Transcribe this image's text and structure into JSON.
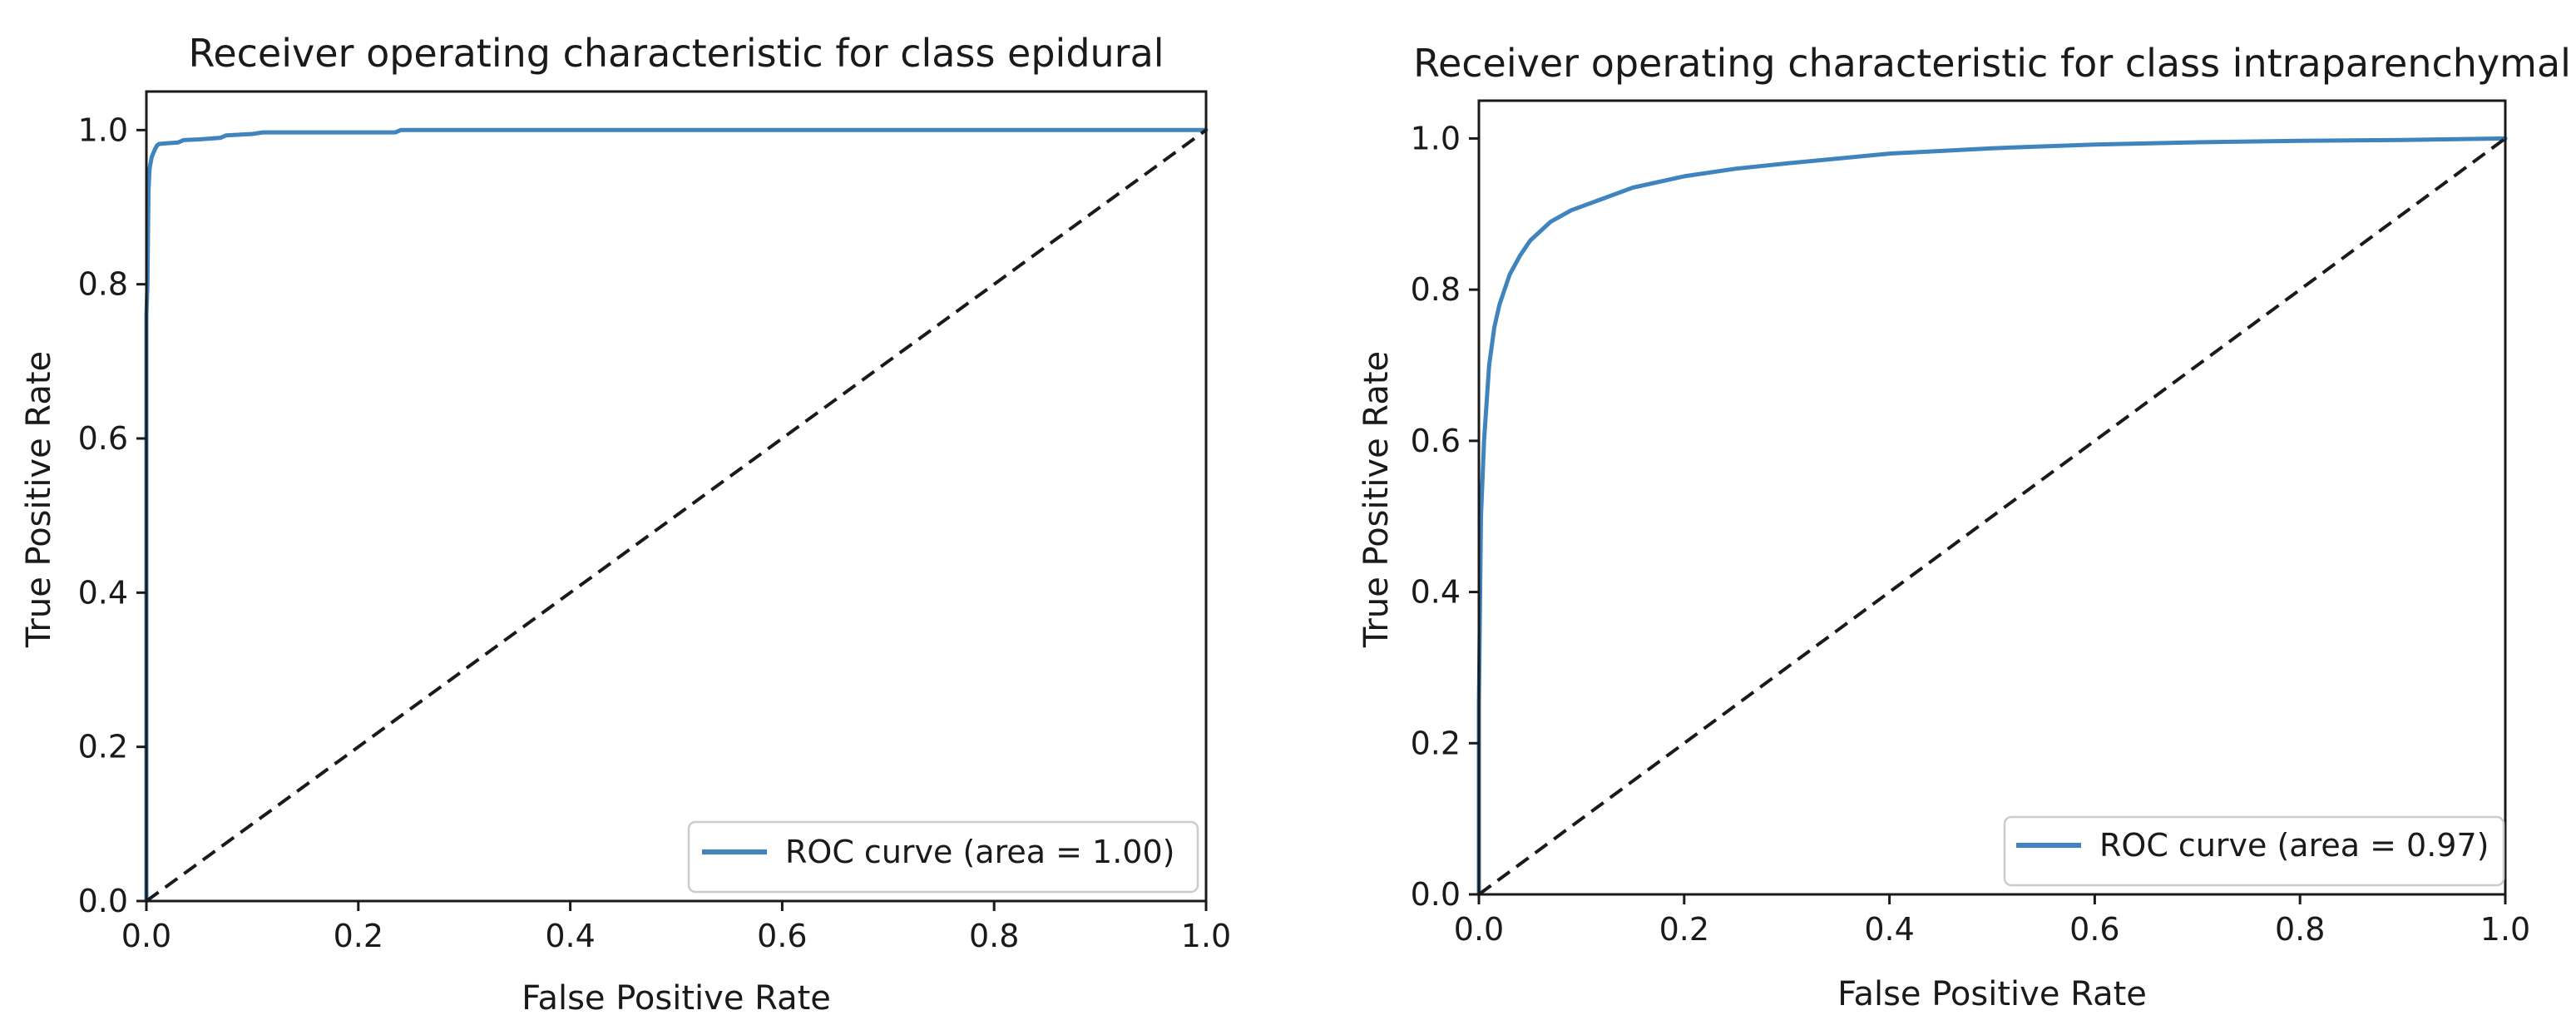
{
  "chart_data": [
    {
      "type": "line",
      "title": "Receiver operating characteristic for class epidural",
      "xlabel": "False Positive Rate",
      "ylabel": "True Positive Rate",
      "xlim": [
        0.0,
        1.0
      ],
      "ylim": [
        0.0,
        1.05
      ],
      "xticks": [
        "0.0",
        "0.2",
        "0.4",
        "0.6",
        "0.8",
        "1.0"
      ],
      "yticks": [
        "0.0",
        "0.2",
        "0.4",
        "0.6",
        "0.8",
        "1.0"
      ],
      "grid": false,
      "legend": {
        "placement": "lower-right",
        "entries": [
          "ROC curve (area = 1.00)"
        ]
      },
      "series": [
        {
          "name": "ROC curve (area = 1.00)",
          "color": "#3f84be",
          "style": "solid",
          "x": [
            0.0,
            0.0,
            0.001,
            0.002,
            0.003,
            0.005,
            0.008,
            0.01,
            0.012,
            0.02,
            0.03,
            0.035,
            0.05,
            0.07,
            0.075,
            0.1,
            0.11,
            0.15,
            0.2,
            0.235,
            0.24,
            0.3,
            0.5,
            0.8,
            1.0
          ],
          "y": [
            0.0,
            0.76,
            0.8,
            0.92,
            0.95,
            0.965,
            0.975,
            0.98,
            0.982,
            0.983,
            0.984,
            0.987,
            0.988,
            0.99,
            0.993,
            0.995,
            0.997,
            0.997,
            0.997,
            0.997,
            1.0,
            1.0,
            1.0,
            1.0,
            1.0
          ]
        },
        {
          "name": "",
          "color": "#1a1a1a",
          "style": "dashed",
          "x": [
            0.0,
            1.0
          ],
          "y": [
            0.0,
            1.0
          ]
        }
      ]
    },
    {
      "type": "line",
      "title": "Receiver operating characteristic for class intraparenchymal",
      "xlabel": "False Positive Rate",
      "ylabel": "True Positive Rate",
      "xlim": [
        0.0,
        1.0
      ],
      "ylim": [
        0.0,
        1.05
      ],
      "xticks": [
        "0.0",
        "0.2",
        "0.4",
        "0.6",
        "0.8",
        "1.0"
      ],
      "yticks": [
        "0.0",
        "0.2",
        "0.4",
        "0.6",
        "0.8",
        "1.0"
      ],
      "grid": false,
      "legend": {
        "placement": "lower-right",
        "entries": [
          "ROC curve (area = 0.97)"
        ]
      },
      "series": [
        {
          "name": "ROC curve (area = 0.97)",
          "color": "#3f84be",
          "style": "solid",
          "x": [
            0.0,
            0.0,
            0.002,
            0.005,
            0.01,
            0.015,
            0.02,
            0.03,
            0.04,
            0.05,
            0.07,
            0.09,
            0.12,
            0.15,
            0.2,
            0.25,
            0.3,
            0.4,
            0.5,
            0.6,
            0.7,
            0.8,
            0.9,
            1.0
          ],
          "y": [
            0.0,
            0.25,
            0.5,
            0.6,
            0.7,
            0.75,
            0.78,
            0.82,
            0.845,
            0.865,
            0.89,
            0.905,
            0.92,
            0.935,
            0.95,
            0.96,
            0.967,
            0.98,
            0.987,
            0.992,
            0.995,
            0.997,
            0.998,
            1.0
          ]
        },
        {
          "name": "",
          "color": "#1a1a1a",
          "style": "dashed",
          "x": [
            0.0,
            1.0
          ],
          "y": [
            0.0,
            1.0
          ]
        }
      ]
    }
  ]
}
